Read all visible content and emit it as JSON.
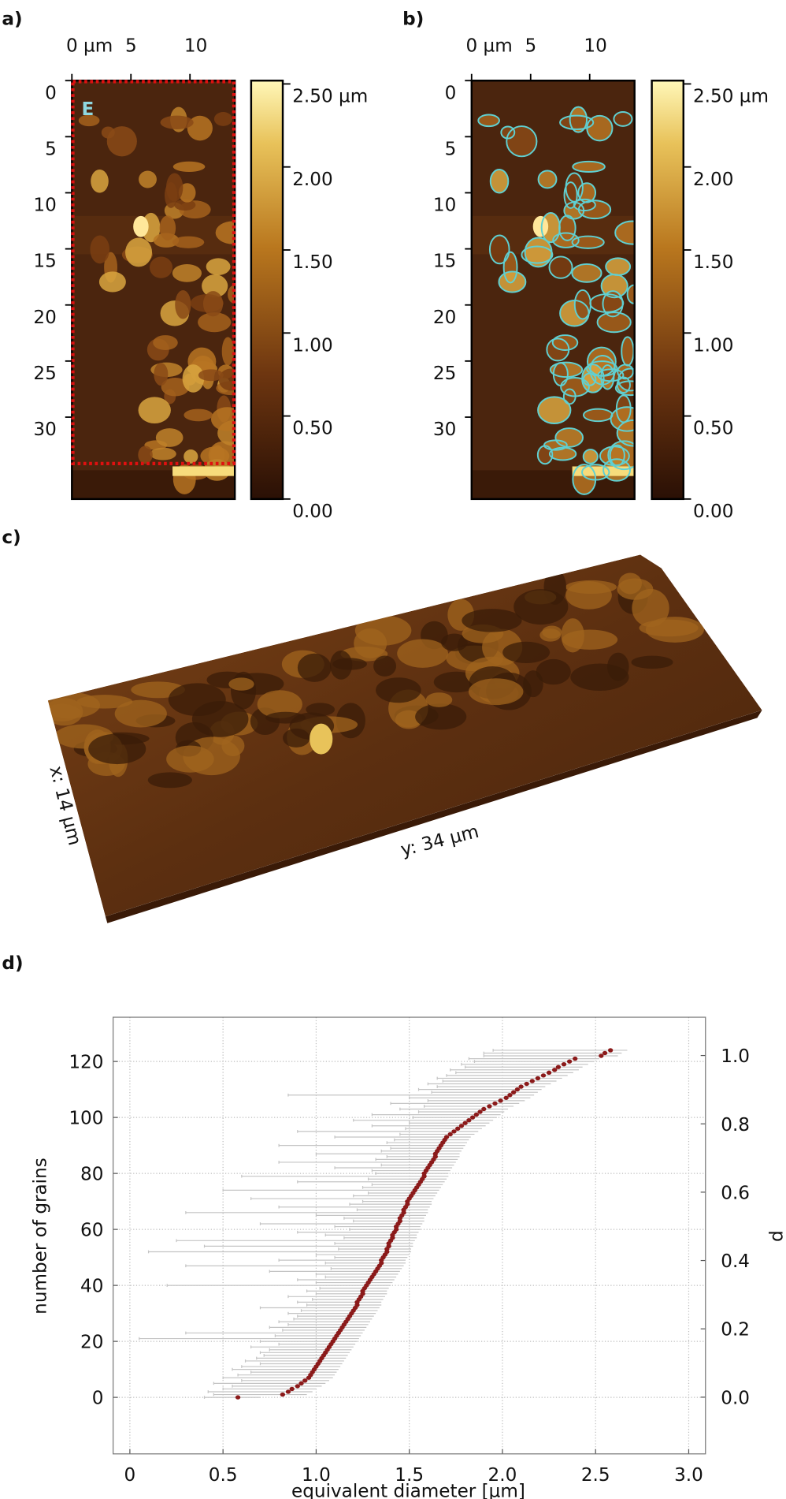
{
  "figure": {
    "panels": [
      {
        "label": "a)",
        "inset_label": "E",
        "xlim": [
          0,
          13.8
        ],
        "ylim": [
          0,
          37.3
        ],
        "xticks": [
          {
            "value": 0,
            "label": "0 µm"
          },
          5,
          10
        ],
        "yticks": [
          0,
          5,
          10,
          15,
          20,
          25,
          30
        ],
        "colorbar": {
          "clim": [
            0,
            2.52
          ],
          "ticks": [
            {
              "value": 2.5,
              "label": "2.50 µm"
            },
            {
              "value": 2,
              "label": "2.00"
            },
            {
              "value": 1.5,
              "label": "1.50"
            },
            {
              "value": 1,
              "label": "1.00"
            },
            {
              "value": 0.5,
              "label": "0.50"
            },
            {
              "value": 0,
              "label": "0.00"
            }
          ]
        }
      },
      {
        "label": "b)",
        "xlim": [
          0,
          13.8
        ],
        "ylim": [
          0,
          37.3
        ],
        "xticks": [
          {
            "value": 0,
            "label": "0 µm"
          },
          5,
          10
        ],
        "yticks": [
          0,
          5,
          10,
          15,
          20,
          25,
          30
        ],
        "colorbar": {
          "clim": [
            0,
            2.52
          ],
          "ticks": [
            {
              "value": 2.5,
              "label": "2.50 µm"
            },
            {
              "value": 2,
              "label": "2.00"
            },
            {
              "value": 1.5,
              "label": "1.50"
            },
            {
              "value": 1,
              "label": "1.00"
            },
            {
              "value": 0.5,
              "label": "0.50"
            },
            {
              "value": 0,
              "label": "0.00"
            }
          ]
        }
      },
      {
        "label": "c)",
        "x_label": "x: 14 µm",
        "y_label": "y: 34 µm"
      },
      {
        "label": "d)"
      }
    ]
  },
  "chart_data": {
    "type": "scatter",
    "x_label": "equivalent diameter [µm]",
    "y_label": "number of grains",
    "y2_label": "p",
    "xlim": [
      -0.09,
      3.09
    ],
    "ylim": [
      -20.2,
      135.8
    ],
    "y2lim": [
      -0.166,
      1.112
    ],
    "xticks": [
      0,
      0.5,
      {
        "value": 1,
        "label": "1.0"
      },
      1.5,
      {
        "value": 2,
        "label": "2.0"
      },
      2.5,
      {
        "value": 3,
        "label": "3.0"
      }
    ],
    "yticks": [
      0,
      20,
      40,
      60,
      80,
      100,
      120
    ],
    "y2ticks": [
      {
        "value": 0,
        "label": "0.0"
      },
      0.2,
      0.4,
      0.6,
      0.8,
      {
        "value": 1,
        "label": "1.0"
      }
    ],
    "grid": true,
    "series": [
      {
        "color": "#8b1a1a",
        "error_color": "#c4c4c4",
        "x": [
          0.58,
          0.82,
          0.85,
          0.87,
          0.9,
          0.92,
          0.94,
          0.96,
          0.97,
          0.98,
          0.99,
          1.0,
          1.01,
          1.02,
          1.03,
          1.04,
          1.05,
          1.06,
          1.07,
          1.08,
          1.09,
          1.1,
          1.11,
          1.12,
          1.13,
          1.14,
          1.15,
          1.16,
          1.17,
          1.18,
          1.19,
          1.2,
          1.21,
          1.22,
          1.22,
          1.23,
          1.24,
          1.25,
          1.25,
          1.26,
          1.27,
          1.28,
          1.29,
          1.3,
          1.31,
          1.32,
          1.33,
          1.34,
          1.35,
          1.35,
          1.36,
          1.37,
          1.38,
          1.38,
          1.39,
          1.39,
          1.4,
          1.41,
          1.41,
          1.42,
          1.43,
          1.43,
          1.44,
          1.45,
          1.45,
          1.46,
          1.47,
          1.47,
          1.48,
          1.49,
          1.49,
          1.5,
          1.51,
          1.52,
          1.53,
          1.54,
          1.55,
          1.56,
          1.57,
          1.58,
          1.58,
          1.59,
          1.6,
          1.61,
          1.62,
          1.63,
          1.64,
          1.64,
          1.65,
          1.66,
          1.67,
          1.68,
          1.69,
          1.7,
          1.72,
          1.74,
          1.76,
          1.78,
          1.8,
          1.82,
          1.84,
          1.86,
          1.88,
          1.9,
          1.93,
          1.96,
          1.99,
          2.02,
          2.04,
          2.06,
          2.08,
          2.1,
          2.13,
          2.16,
          2.19,
          2.22,
          2.25,
          2.28,
          2.3,
          2.33,
          2.36,
          2.39,
          2.53,
          2.55,
          2.58
        ],
        "values": [
          0,
          1,
          2,
          3,
          4,
          5,
          6,
          7,
          8,
          9,
          10,
          11,
          12,
          13,
          14,
          15,
          16,
          17,
          18,
          19,
          20,
          21,
          22,
          23,
          24,
          25,
          26,
          27,
          28,
          29,
          30,
          31,
          32,
          33,
          34,
          35,
          36,
          37,
          38,
          39,
          40,
          41,
          42,
          43,
          44,
          45,
          46,
          47,
          48,
          49,
          50,
          51,
          52,
          53,
          54,
          55,
          56,
          57,
          58,
          59,
          60,
          61,
          62,
          63,
          64,
          65,
          66,
          67,
          68,
          69,
          70,
          71,
          72,
          73,
          74,
          75,
          76,
          77,
          78,
          79,
          80,
          81,
          82,
          83,
          84,
          85,
          86,
          87,
          88,
          89,
          90,
          91,
          92,
          93,
          94,
          95,
          96,
          97,
          98,
          99,
          100,
          101,
          102,
          103,
          104,
          105,
          106,
          107,
          108,
          109,
          110,
          111,
          112,
          113,
          114,
          115,
          116,
          117,
          118,
          119,
          120,
          121,
          122,
          123,
          124
        ],
        "x_min": [
          0.4,
          0.45,
          0.42,
          0.5,
          0.55,
          0.45,
          0.6,
          0.5,
          0.58,
          0.65,
          0.55,
          0.6,
          0.7,
          0.62,
          0.68,
          0.72,
          0.7,
          0.75,
          0.65,
          0.8,
          0.7,
          0.05,
          0.78,
          0.3,
          0.82,
          0.75,
          0.85,
          0.8,
          0.88,
          0.9,
          0.85,
          0.92,
          0.7,
          0.95,
          0.9,
          0.98,
          0.85,
          1.0,
          0.95,
          1.02,
          0.2,
          1.0,
          0.9,
          1.05,
          1.0,
          0.75,
          1.08,
          0.3,
          1.05,
          0.8,
          1.1,
          1.0,
          0.1,
          1.12,
          0.4,
          1.1,
          0.25,
          1.15,
          1.05,
          0.9,
          1.18,
          1.1,
          0.7,
          1.2,
          1.15,
          1.0,
          0.3,
          1.22,
          0.8,
          1.18,
          1.25,
          0.65,
          1.2,
          1.28,
          0.5,
          1.25,
          1.3,
          0.9,
          1.28,
          0.6,
          1.32,
          1.3,
          1.1,
          1.35,
          0.8,
          1.32,
          1.38,
          1.0,
          1.35,
          1.4,
          0.8,
          1.38,
          1.42,
          1.1,
          1.45,
          0.9,
          1.48,
          1.3,
          1.5,
          1.2,
          1.52,
          1.3,
          1.55,
          1.45,
          1.58,
          1.4,
          1.6,
          1.5,
          0.85,
          1.62,
          1.55,
          1.65,
          1.6,
          1.68,
          1.65,
          1.7,
          1.75,
          1.72,
          1.8,
          1.78,
          1.85,
          1.82,
          1.9,
          1.9,
          1.95
        ],
        "x_max": [
          0.7,
          0.95,
          0.98,
          1.0,
          1.03,
          1.05,
          1.07,
          1.09,
          1.1,
          1.11,
          1.12,
          1.13,
          1.14,
          1.15,
          1.16,
          1.17,
          1.18,
          1.19,
          1.2,
          1.21,
          1.22,
          1.23,
          1.24,
          1.25,
          1.26,
          1.27,
          1.28,
          1.29,
          1.3,
          1.31,
          1.32,
          1.33,
          1.34,
          1.35,
          1.35,
          1.36,
          1.37,
          1.38,
          1.38,
          1.39,
          1.4,
          1.41,
          1.42,
          1.43,
          1.44,
          1.45,
          1.46,
          1.47,
          1.48,
          1.48,
          1.49,
          1.5,
          1.51,
          1.51,
          1.52,
          1.52,
          1.53,
          1.54,
          1.54,
          1.55,
          1.56,
          1.56,
          1.57,
          1.58,
          1.58,
          1.59,
          1.6,
          1.6,
          1.61,
          1.62,
          1.62,
          1.63,
          1.64,
          1.65,
          1.66,
          1.67,
          1.68,
          1.69,
          1.7,
          1.71,
          1.71,
          1.72,
          1.73,
          1.74,
          1.75,
          1.76,
          1.77,
          1.77,
          1.78,
          1.79,
          1.8,
          1.81,
          1.82,
          1.83,
          1.85,
          1.87,
          1.89,
          1.91,
          1.93,
          1.95,
          1.97,
          1.99,
          2.01,
          2.03,
          2.06,
          2.09,
          2.12,
          2.15,
          2.17,
          2.19,
          2.21,
          2.23,
          2.26,
          2.29,
          2.32,
          2.35,
          2.38,
          2.41,
          2.43,
          2.46,
          2.49,
          2.52,
          2.62,
          2.64,
          2.67
        ]
      }
    ]
  }
}
